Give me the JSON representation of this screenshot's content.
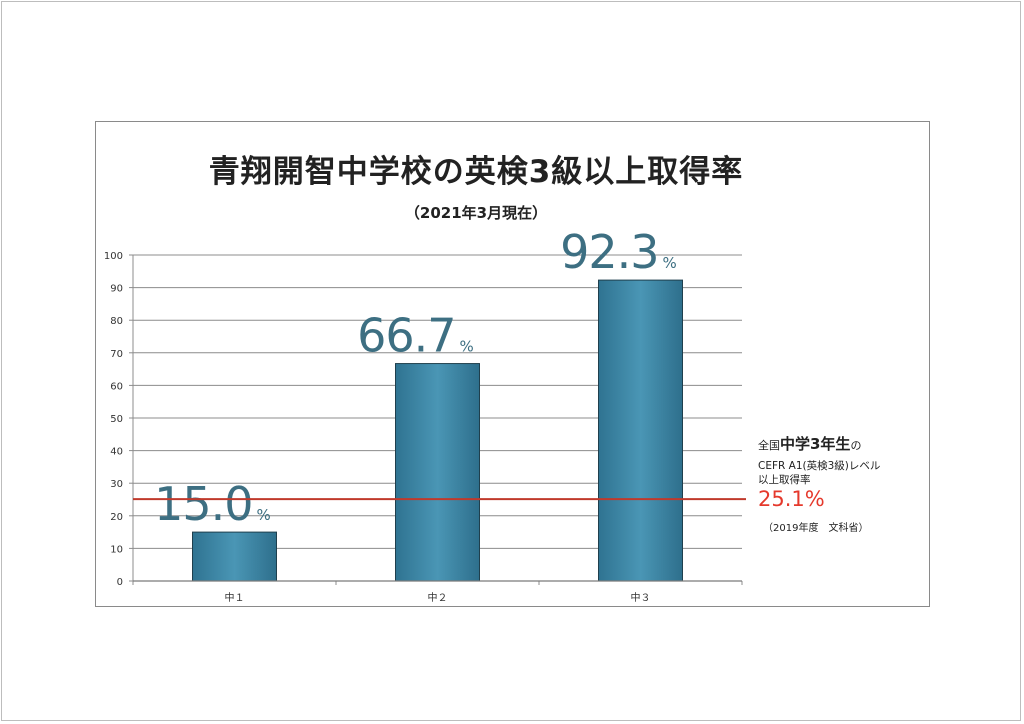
{
  "chart_data": {
    "type": "bar",
    "title": "青翔開智中学校の英検3級以上取得率",
    "subtitle": "（2021年3月現在）",
    "categories": [
      "中１",
      "中２",
      "中３"
    ],
    "values": [
      15.0,
      66.7,
      92.3
    ],
    "value_labels": [
      "15.0",
      "66.7",
      "92.3"
    ],
    "value_unit": "%",
    "y_ticks": [
      "0",
      "10",
      "20",
      "30",
      "40",
      "50",
      "60",
      "70",
      "80",
      "90",
      "100"
    ],
    "ylim": [
      0,
      100
    ],
    "grid": true,
    "bar_color": "#4a96b5",
    "label_color": "#3d6f82",
    "reference_line": {
      "value": 25.1,
      "color": "#c0392b"
    }
  },
  "note": {
    "prefix": "全国",
    "emphasis": "中学3年生",
    "suffix": "の",
    "line2": "CEFR A1(英検3級)レベル",
    "line3": "以上取得率",
    "value": "25.1%",
    "source": "（2019年度　文科省）",
    "value_color": "#e5392c"
  }
}
